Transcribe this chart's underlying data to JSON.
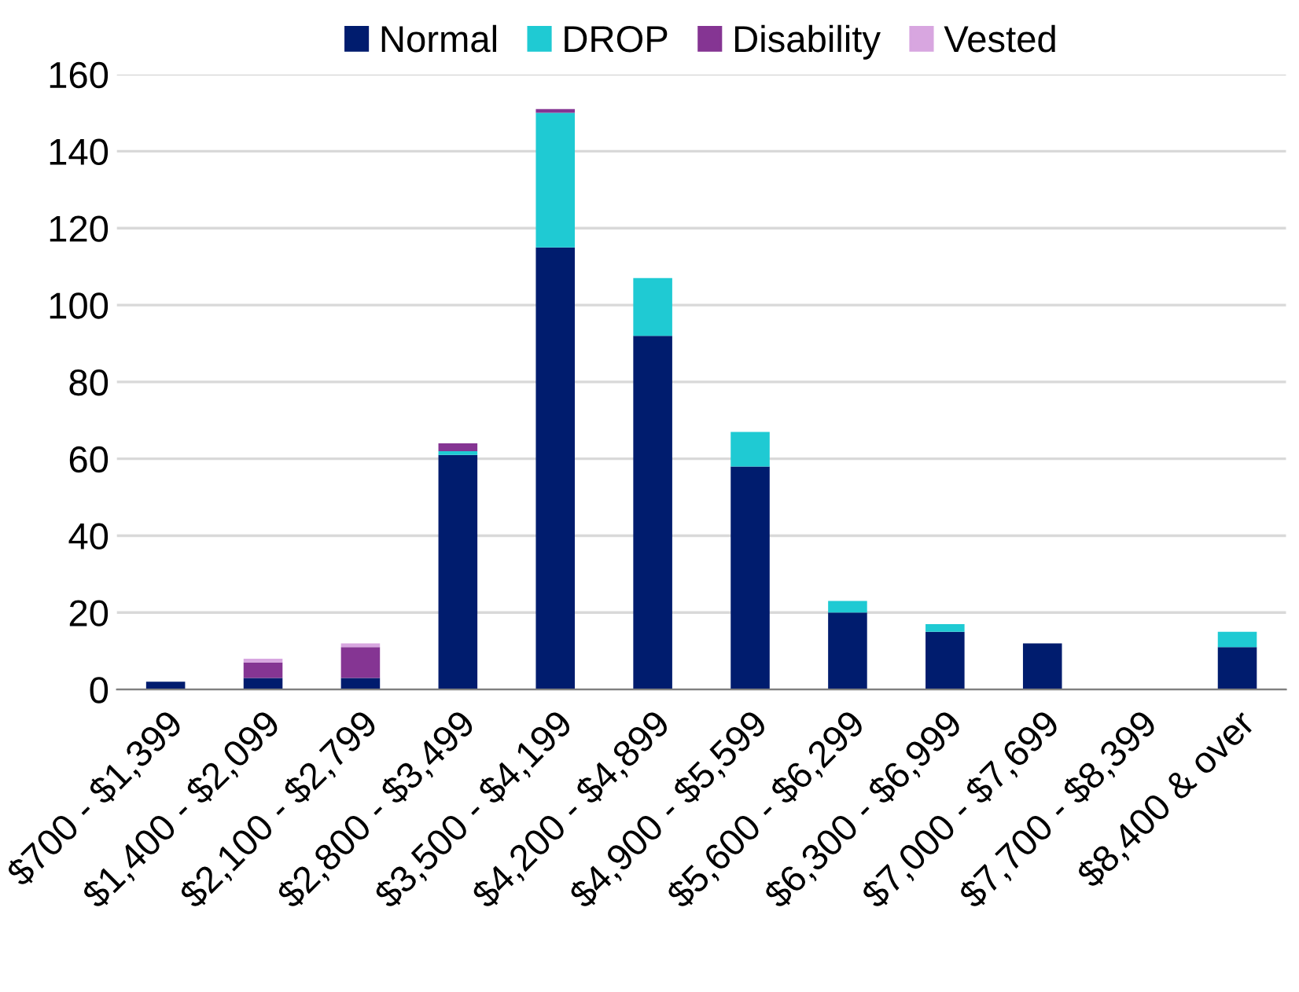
{
  "chart_data": {
    "type": "bar",
    "stacked": true,
    "categories": [
      "$700 - $1,399",
      "$1,400 - $2,099",
      "$2,100 - $2,799",
      "$2,800 - $3,499",
      "$3,500 - $4,199",
      "$4,200 - $4,899",
      "$4,900 - $5,599",
      "$5,600 - $6,299",
      "$6,300 - $6,999",
      "$7,000 - $7,699",
      "$7,700 - $8,399",
      "$8,400 & over"
    ],
    "series": [
      {
        "name": "Normal",
        "color": "#001c6e",
        "values": [
          2,
          3,
          3,
          61,
          115,
          92,
          58,
          20,
          15,
          12,
          0,
          11
        ]
      },
      {
        "name": "DROP",
        "color": "#1fcad3",
        "values": [
          0,
          0,
          0,
          1,
          35,
          15,
          9,
          3,
          2,
          0,
          0,
          4
        ]
      },
      {
        "name": "Disability",
        "color": "#853593",
        "values": [
          0,
          4,
          8,
          2,
          1,
          0,
          0,
          0,
          0,
          0,
          0,
          0
        ]
      },
      {
        "name": "Vested",
        "color": "#d8a6e0",
        "values": [
          0,
          1,
          1,
          0,
          0,
          0,
          0,
          0,
          0,
          0,
          0,
          0
        ]
      }
    ],
    "ylim": [
      0,
      160
    ],
    "yticks": [
      0,
      20,
      40,
      60,
      80,
      100,
      120,
      140,
      160
    ],
    "grid": "y",
    "legend": "top"
  }
}
